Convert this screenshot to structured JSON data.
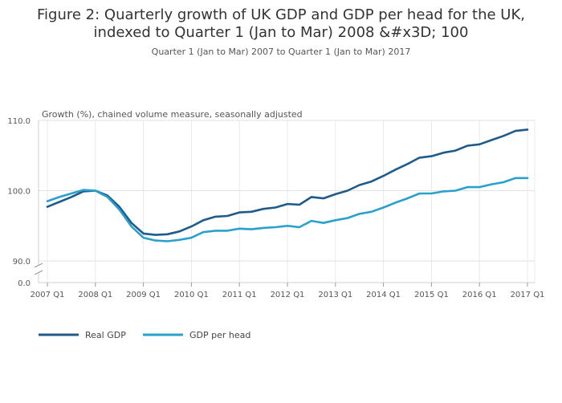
{
  "chart_data": {
    "type": "line",
    "title_line1": "Figure 2: Quarterly growth of UK GDP and GDP per head for the UK,",
    "title_line2": "indexed to Quarter 1 (Jan to Mar) 2008 &#x3D; 100",
    "subtitle": "Quarter 1 (Jan to Mar) 2007 to Quarter 1 (Jan to Mar) 2017",
    "ylabel": "Growth (%), chained volume measure, seasonally adjusted",
    "x_tick_labels": [
      "2007 Q1",
      "2008 Q1",
      "2009 Q1",
      "2010 Q1",
      "2011 Q1",
      "2012 Q1",
      "2013 Q1",
      "2014 Q1",
      "2015 Q1",
      "2016 Q1",
      "2017 Q1"
    ],
    "y_tick_labels": [
      "110.0",
      "100.0",
      "90.0",
      "0.0"
    ],
    "y_ticks": [
      110,
      100,
      90
    ],
    "y_break_value": 0,
    "ylim": [
      90,
      110
    ],
    "grid": true,
    "legend_position": "bottom-left",
    "x": [
      "2007 Q1",
      "2007 Q2",
      "2007 Q3",
      "2007 Q4",
      "2008 Q1",
      "2008 Q2",
      "2008 Q3",
      "2008 Q4",
      "2009 Q1",
      "2009 Q2",
      "2009 Q3",
      "2009 Q4",
      "2010 Q1",
      "2010 Q2",
      "2010 Q3",
      "2010 Q4",
      "2011 Q1",
      "2011 Q2",
      "2011 Q3",
      "2011 Q4",
      "2012 Q1",
      "2012 Q2",
      "2012 Q3",
      "2012 Q4",
      "2013 Q1",
      "2013 Q2",
      "2013 Q3",
      "2013 Q4",
      "2014 Q1",
      "2014 Q2",
      "2014 Q3",
      "2014 Q4",
      "2015 Q1",
      "2015 Q2",
      "2015 Q3",
      "2015 Q4",
      "2016 Q1",
      "2016 Q2",
      "2016 Q3",
      "2016 Q4",
      "2017 Q1"
    ],
    "series": [
      {
        "name": "Real GDP",
        "color": "#1f5b8a",
        "values": [
          97.7,
          98.4,
          99.1,
          99.9,
          100.0,
          99.3,
          97.7,
          95.4,
          93.9,
          93.7,
          93.8,
          94.2,
          94.9,
          95.8,
          96.3,
          96.4,
          96.9,
          97.0,
          97.4,
          97.6,
          98.1,
          98.0,
          99.1,
          98.9,
          99.5,
          100.0,
          100.8,
          101.3,
          102.1,
          103.0,
          103.8,
          104.7,
          104.9,
          105.4,
          105.7,
          106.4,
          106.6,
          107.2,
          107.8,
          108.5,
          108.7
        ]
      },
      {
        "name": "GDP per head",
        "color": "#2aa0cd",
        "values": [
          98.5,
          99.1,
          99.6,
          100.1,
          100.0,
          99.1,
          97.3,
          94.9,
          93.3,
          92.9,
          92.8,
          93.0,
          93.3,
          94.1,
          94.3,
          94.3,
          94.6,
          94.5,
          94.7,
          94.8,
          95.0,
          94.8,
          95.7,
          95.4,
          95.8,
          96.1,
          96.7,
          97.0,
          97.6,
          98.3,
          98.9,
          99.6,
          99.6,
          99.9,
          100.0,
          100.5,
          100.5,
          100.9,
          101.2,
          101.8,
          101.8
        ]
      }
    ]
  }
}
